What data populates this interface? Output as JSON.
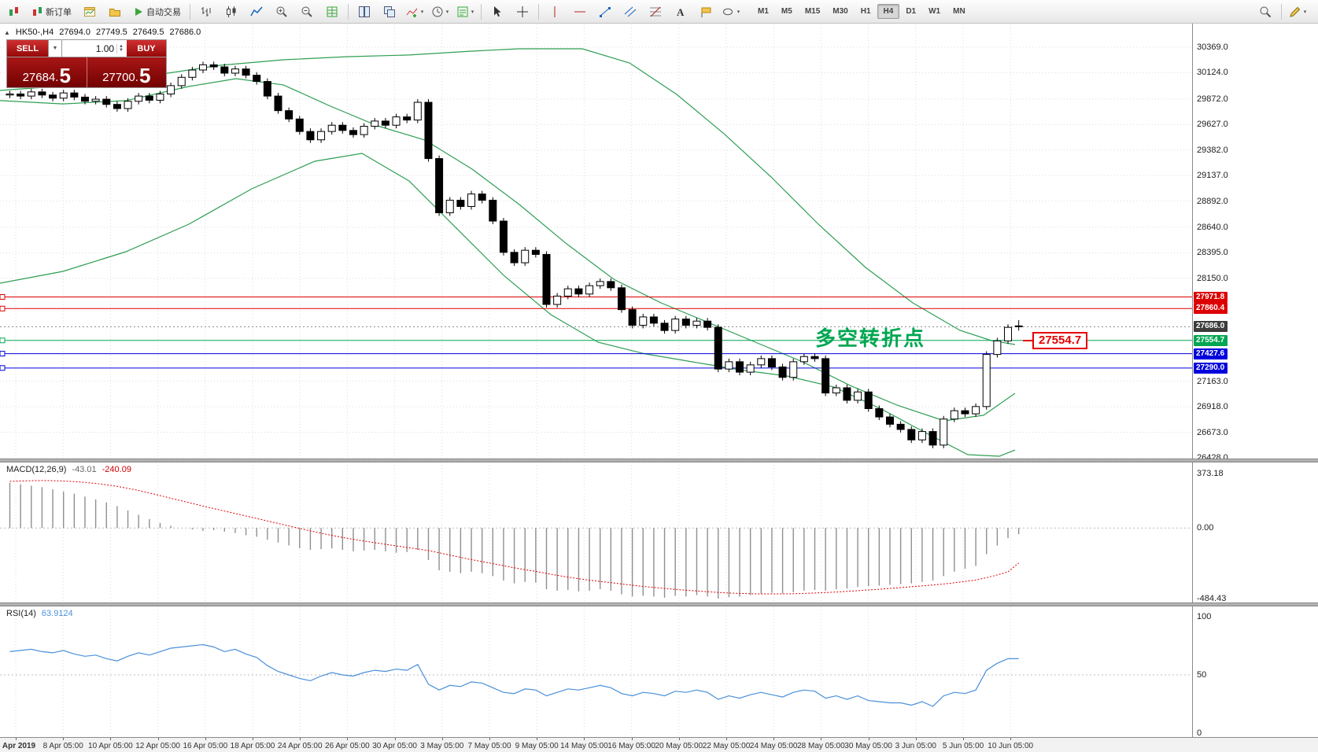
{
  "toolbar": {
    "new_order_label": "新订单",
    "autotrade_label": "自动交易",
    "timeframes": [
      "M1",
      "M5",
      "M15",
      "M30",
      "H1",
      "H4",
      "D1",
      "W1",
      "MN"
    ],
    "active_timeframe": "H4"
  },
  "header": {
    "symbol": "HK50-,H4",
    "open": "27694.0",
    "high": "27749.5",
    "low": "27649.5",
    "close": "27686.0"
  },
  "trade_panel": {
    "sell_label": "SELL",
    "buy_label": "BUY",
    "volume": "1.00",
    "sell_price_main": "27684.",
    "sell_price_big": "5",
    "buy_price_main": "27700.",
    "buy_price_big": "5"
  },
  "annotation": {
    "text": "多空转折点",
    "color": "#00a651"
  },
  "price_tag": {
    "text": "27554.7",
    "color": "#e60000"
  },
  "price_axis": {
    "ticks": [
      30369.0,
      30124.0,
      29872.0,
      29627.0,
      29382.0,
      29137.0,
      28892.0,
      28640.0,
      28395.0,
      28150.0,
      27163.0,
      26918.0,
      26673.0,
      26428.0
    ]
  },
  "macd_axis": [
    {
      "v": 373.18,
      "label": "373.18"
    },
    {
      "v": 0,
      "label": "0.00"
    },
    {
      "v": -484.43,
      "label": "-484.43"
    }
  ],
  "rsi_axis": [
    {
      "v": 100,
      "label": "100"
    },
    {
      "v": 50,
      "label": "50"
    },
    {
      "v": 0,
      "label": "0"
    }
  ],
  "chart_data": {
    "type": "candlestick+indicators",
    "symbol": "HK50-",
    "timeframe": "H4",
    "price_range": [
      26428.0,
      30369.0
    ],
    "ohlc_current": {
      "open": 27694.0,
      "high": 27749.5,
      "low": 27649.5,
      "close": 27686.0
    },
    "first_open": 29910,
    "closes": [
      29920,
      29900,
      29940,
      29910,
      29880,
      29930,
      29890,
      29850,
      29870,
      29820,
      29780,
      29850,
      29900,
      29860,
      29920,
      30000,
      30080,
      30150,
      30200,
      30180,
      30120,
      30160,
      30100,
      30040,
      29900,
      29760,
      29680,
      29560,
      29480,
      29560,
      29620,
      29570,
      29530,
      29610,
      29660,
      29620,
      29700,
      29670,
      29840,
      29300,
      28780,
      28900,
      28840,
      28960,
      28900,
      28700,
      28400,
      28300,
      28420,
      28380,
      27900,
      27980,
      28050,
      28000,
      28080,
      28120,
      28060,
      27850,
      27700,
      27780,
      27720,
      27650,
      27760,
      27700,
      27740,
      27680,
      27280,
      27350,
      27250,
      27320,
      27380,
      27300,
      27200,
      27350,
      27400,
      27380,
      27050,
      27100,
      26980,
      27060,
      26900,
      26820,
      26750,
      26700,
      26600,
      26680,
      26550,
      26800,
      26880,
      26850,
      26920,
      27420,
      27550,
      27680,
      27686
    ],
    "bands": {
      "color": "#2e9e53",
      "upper": [
        [
          0,
          29954
        ],
        [
          100,
          30007
        ],
        [
          200,
          30105
        ],
        [
          280,
          30195
        ],
        [
          360,
          30248
        ],
        [
          440,
          30278
        ],
        [
          520,
          30294
        ],
        [
          600,
          30331
        ],
        [
          660,
          30354
        ],
        [
          740,
          30354
        ],
        [
          800,
          30218
        ],
        [
          860,
          29916
        ],
        [
          920,
          29539
        ],
        [
          980,
          29123
        ],
        [
          1040,
          28670
        ],
        [
          1100,
          28255
        ],
        [
          1160,
          27915
        ],
        [
          1220,
          27651
        ],
        [
          1260,
          27553
        ],
        [
          1290,
          27515
        ]
      ],
      "middle": [
        [
          0,
          29856
        ],
        [
          80,
          29825
        ],
        [
          160,
          29856
        ],
        [
          240,
          29992
        ],
        [
          300,
          30067
        ],
        [
          360,
          30007
        ],
        [
          420,
          29803
        ],
        [
          480,
          29614
        ],
        [
          540,
          29478
        ],
        [
          600,
          29199
        ],
        [
          660,
          28859
        ],
        [
          720,
          28482
        ],
        [
          780,
          28142
        ],
        [
          840,
          27915
        ],
        [
          900,
          27727
        ],
        [
          960,
          27538
        ],
        [
          1020,
          27349
        ],
        [
          1080,
          27123
        ],
        [
          1140,
          26934
        ],
        [
          1200,
          26783
        ],
        [
          1250,
          26836
        ],
        [
          1290,
          27047
        ]
      ],
      "lower": [
        [
          0,
          28104
        ],
        [
          80,
          28217
        ],
        [
          160,
          28406
        ],
        [
          240,
          28670
        ],
        [
          320,
          29010
        ],
        [
          400,
          29274
        ],
        [
          460,
          29350
        ],
        [
          520,
          29085
        ],
        [
          580,
          28632
        ],
        [
          640,
          28180
        ],
        [
          700,
          27802
        ],
        [
          760,
          27538
        ],
        [
          820,
          27425
        ],
        [
          880,
          27349
        ],
        [
          940,
          27273
        ],
        [
          1000,
          27213
        ],
        [
          1060,
          27107
        ],
        [
          1120,
          26896
        ],
        [
          1180,
          26654
        ],
        [
          1230,
          26458
        ],
        [
          1270,
          26443
        ],
        [
          1290,
          26503
        ]
      ]
    },
    "hlines": [
      {
        "price": 27971.8,
        "label": "27971.8",
        "color": "#dd0000"
      },
      {
        "price": 27860.4,
        "label": "27860.4",
        "color": "#dd0000"
      },
      {
        "price": 27686.0,
        "label": "27686.0",
        "color": "#3c3c3c",
        "style": "current"
      },
      {
        "price": 27554.7,
        "label": "27554.7",
        "color": "#00a651"
      },
      {
        "price": 27427.6,
        "label": "27427.6",
        "color": "#0000dd"
      },
      {
        "price": 27290.0,
        "label": "27290.0",
        "color": "#0000dd"
      }
    ],
    "macd": {
      "label": "MACD(12,26,9)",
      "value": "-43.01",
      "signal": "-240.09",
      "histogram": [
        310,
        300,
        290,
        280,
        265,
        250,
        235,
        215,
        195,
        175,
        150,
        120,
        90,
        60,
        35,
        15,
        0,
        -10,
        -20,
        -15,
        -25,
        -35,
        -50,
        -60,
        -80,
        -100,
        -120,
        -140,
        -150,
        -145,
        -140,
        -150,
        -160,
        -155,
        -150,
        -160,
        -170,
        -165,
        -150,
        -220,
        -290,
        -300,
        -310,
        -300,
        -310,
        -330,
        -360,
        -380,
        -370,
        -375,
        -420,
        -430,
        -425,
        -435,
        -430,
        -420,
        -430,
        -455,
        -470,
        -465,
        -470,
        -478,
        -465,
        -470,
        -460,
        -470,
        -484,
        -475,
        -470,
        -460,
        -450,
        -445,
        -450,
        -440,
        -430,
        -425,
        -430,
        -420,
        -415,
        -405,
        -400,
        -395,
        -390,
        -385,
        -380,
        -370,
        -360,
        -330,
        -300,
        -280,
        -260,
        -180,
        -120,
        -70,
        -43.01
      ],
      "signal_line": [
        320,
        322,
        324,
        325,
        324,
        322,
        318,
        312,
        305,
        296,
        285,
        272,
        257,
        240,
        222,
        204,
        186,
        168,
        150,
        133,
        116,
        99,
        82,
        65,
        48,
        31,
        14,
        -3,
        -20,
        -36,
        -51,
        -65,
        -78,
        -90,
        -101,
        -112,
        -123,
        -134,
        -144,
        -155,
        -170,
        -186,
        -202,
        -217,
        -231,
        -245,
        -259,
        -273,
        -286,
        -298,
        -312,
        -325,
        -337,
        -348,
        -358,
        -367,
        -375,
        -384,
        -393,
        -401,
        -408,
        -415,
        -421,
        -427,
        -432,
        -437,
        -442,
        -446,
        -449,
        -451,
        -452,
        -452,
        -452,
        -451,
        -449,
        -446,
        -443,
        -439,
        -435,
        -430,
        -425,
        -420,
        -415,
        -409,
        -403,
        -397,
        -391,
        -384,
        -376,
        -367,
        -357,
        -341,
        -322,
        -301,
        -240.09
      ]
    },
    "rsi": {
      "label": "RSI(14)",
      "value": "63.9124",
      "values": [
        70,
        71,
        72,
        70,
        69,
        71,
        68,
        66,
        67,
        64,
        62,
        66,
        69,
        67,
        70,
        73,
        74,
        75,
        76,
        74,
        70,
        72,
        68,
        65,
        58,
        53,
        50,
        47,
        45,
        49,
        52,
        50,
        49,
        52,
        54,
        53,
        55,
        54,
        59,
        42,
        37,
        41,
        40,
        44,
        43,
        39,
        35,
        34,
        38,
        37,
        32,
        35,
        38,
        37,
        39,
        41,
        39,
        34,
        32,
        35,
        34,
        32,
        36,
        35,
        37,
        35,
        29,
        32,
        30,
        33,
        35,
        33,
        31,
        35,
        37,
        36,
        30,
        32,
        29,
        32,
        28,
        27,
        26,
        26,
        24,
        27,
        23,
        32,
        35,
        34,
        37,
        54,
        60,
        64,
        63.91
      ]
    },
    "time_labels": [
      "8 Apr 2019",
      "8 Apr 05:00",
      "10 Apr 05:00",
      "12 Apr 05:00",
      "16 Apr 05:00",
      "18 Apr 05:00",
      "24 Apr 05:00",
      "26 Apr 05:00",
      "30 Apr 05:00",
      "3 May 05:00",
      "7 May 05:00",
      "9 May 05:00",
      "14 May 05:00",
      "16 May 05:00",
      "20 May 05:00",
      "22 May 05:00",
      "24 May 05:00",
      "28 May 05:00",
      "30 May 05:00",
      "3 Jun 05:00",
      "5 Jun 05:00",
      "10 Jun 05:00"
    ]
  }
}
